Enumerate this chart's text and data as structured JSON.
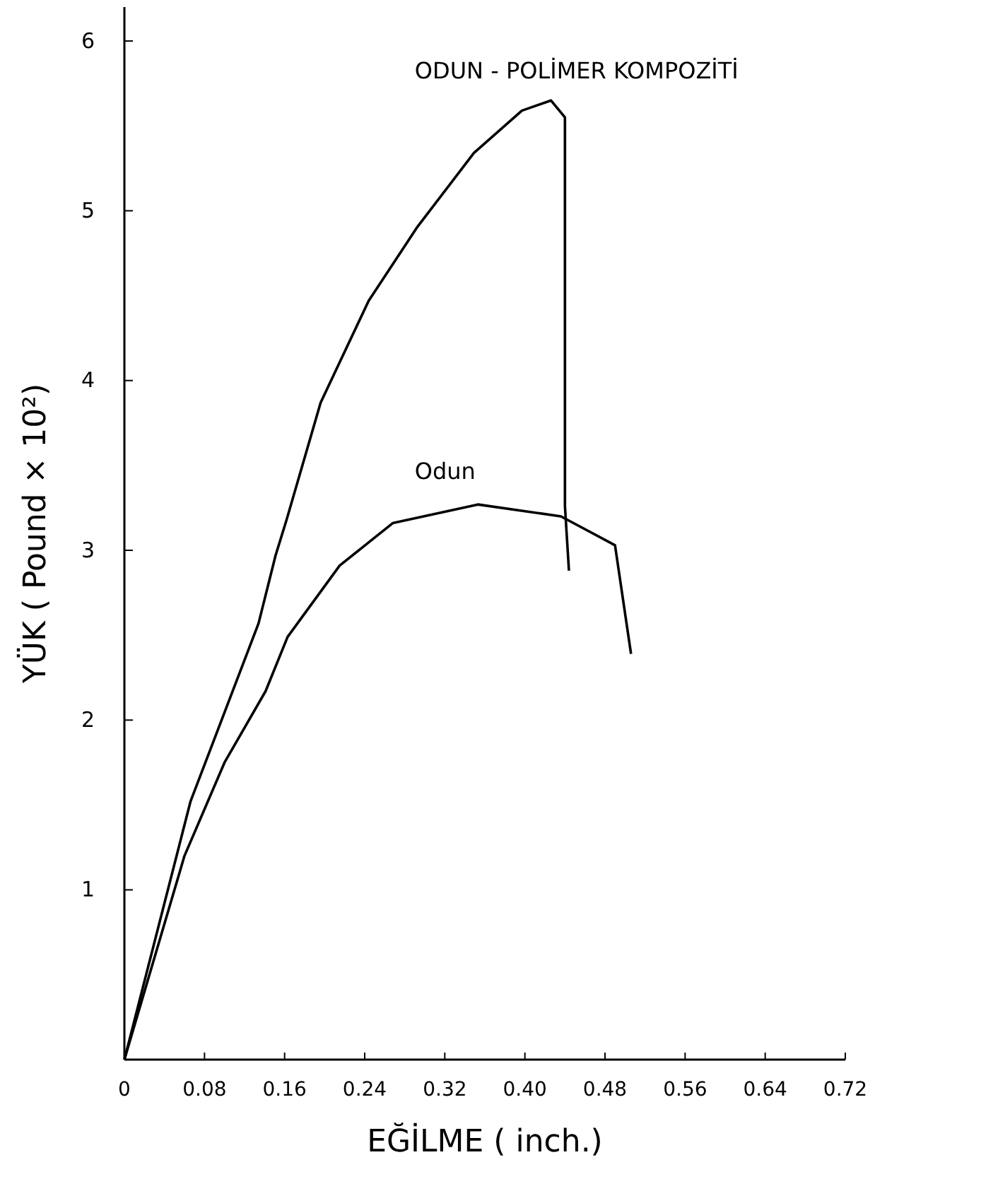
{
  "chart_data": {
    "type": "line",
    "xlabel": "EĞİLME ( inch.)",
    "ylabel": "YÜK ( Pound × 10²)",
    "xlim": [
      0,
      0.72
    ],
    "ylim": [
      0,
      6.2
    ],
    "xticks": [
      0,
      {
        "value": 0.08,
        "label": "0.08"
      },
      0.16,
      0.24,
      0.32,
      {
        "value": 0.4,
        "label": "0.40"
      },
      0.48,
      0.56,
      0.64,
      0.72
    ],
    "yticks": [
      1,
      2,
      3,
      4,
      5,
      6
    ],
    "grid": false,
    "legend": false,
    "marker": "none",
    "line_style": "solid",
    "series": [
      {
        "name": "ODUN - POLİMER KOMPOZİTİ",
        "color": "#000000",
        "x": [
          0,
          0.066,
          0.134,
          0.151,
          0.162,
          0.196,
          0.244,
          0.292,
          0.349,
          0.397,
          0.426,
          0.44,
          0.44,
          0.444
        ],
        "values": [
          0,
          1.52,
          2.57,
          2.97,
          3.18,
          3.87,
          4.47,
          4.9,
          5.34,
          5.59,
          5.65,
          5.55,
          3.26,
          2.88
        ]
      },
      {
        "name": "Odun",
        "color": "#000000",
        "x": [
          0,
          0.06,
          0.1,
          0.141,
          0.163,
          0.215,
          0.268,
          0.353,
          0.436,
          0.49,
          0.506
        ],
        "values": [
          0,
          1.2,
          1.75,
          2.17,
          2.49,
          2.91,
          3.16,
          3.27,
          3.2,
          3.03,
          2.39
        ]
      }
    ]
  }
}
